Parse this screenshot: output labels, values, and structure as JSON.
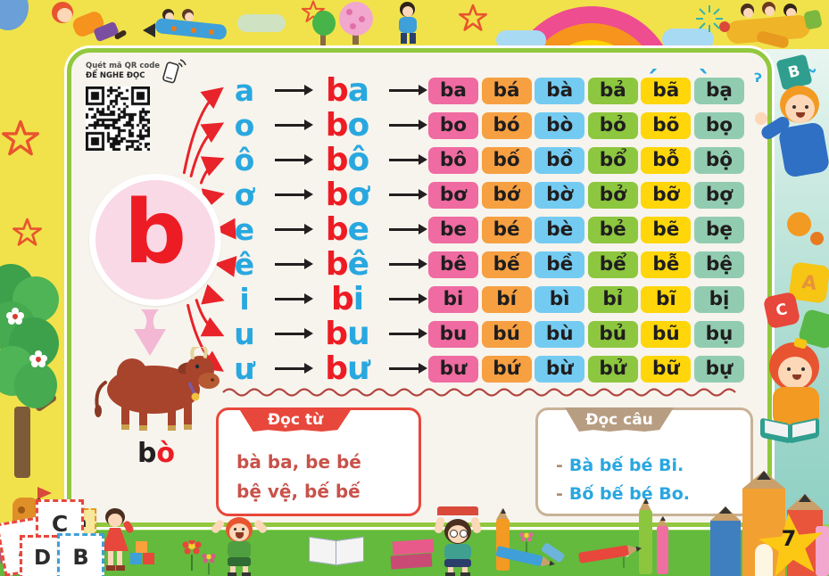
{
  "qr": {
    "line1": "Quét mã QR code",
    "line2": "ĐỂ NGHE ĐỌC"
  },
  "focus_letter": "b",
  "table": {
    "tone_marks": [
      "´",
      "`",
      "ˀ",
      "˜",
      "•"
    ],
    "cell_colors": [
      "#ef6ba1",
      "#f6a041",
      "#74cbf1",
      "#8dc63f",
      "#fed609",
      "#92ccb0"
    ],
    "rows": [
      {
        "vowel": "a",
        "syllable": "ba",
        "tones": [
          "ba",
          "bá",
          "bà",
          "bả",
          "bã",
          "bạ"
        ]
      },
      {
        "vowel": "o",
        "syllable": "bo",
        "tones": [
          "bo",
          "bó",
          "bò",
          "bỏ",
          "bõ",
          "bọ"
        ]
      },
      {
        "vowel": "ô",
        "syllable": "bô",
        "tones": [
          "bô",
          "bố",
          "bồ",
          "bổ",
          "bỗ",
          "bộ"
        ]
      },
      {
        "vowel": "ơ",
        "syllable": "bơ",
        "tones": [
          "bơ",
          "bớ",
          "bờ",
          "bở",
          "bỡ",
          "bợ"
        ]
      },
      {
        "vowel": "e",
        "syllable": "be",
        "tones": [
          "be",
          "bé",
          "bè",
          "bẻ",
          "bẽ",
          "bẹ"
        ]
      },
      {
        "vowel": "ê",
        "syllable": "bê",
        "tones": [
          "bê",
          "bế",
          "bề",
          "bể",
          "bễ",
          "bệ"
        ]
      },
      {
        "vowel": "i",
        "syllable": "bi",
        "tones": [
          "bi",
          "bí",
          "bì",
          "bỉ",
          "bĩ",
          "bị"
        ]
      },
      {
        "vowel": "u",
        "syllable": "bu",
        "tones": [
          "bu",
          "bú",
          "bù",
          "bủ",
          "bũ",
          "bụ"
        ]
      },
      {
        "vowel": "ư",
        "syllable": "bư",
        "tones": [
          "bư",
          "bứ",
          "bừ",
          "bử",
          "bữ",
          "bự"
        ]
      }
    ]
  },
  "cow": {
    "label_b": "b",
    "label_rest": "ò"
  },
  "read_words": {
    "title": "Đọc từ",
    "lines": [
      "bà ba, be bé",
      "bệ vệ, bế bế"
    ]
  },
  "read_sentences": {
    "title": "Đọc câu",
    "bullet": "-",
    "lines": [
      "Bà bế bé Bi.",
      "Bố bế bé Bo."
    ]
  },
  "page_number": "7",
  "decor": {
    "blocks": [
      "A",
      "C",
      "a",
      "D",
      "B"
    ],
    "cube_letter": "B",
    "puzzle_letters": [
      "A",
      "C"
    ]
  },
  "colors": {
    "background": "#f1e24b",
    "card_border": "#92c83e",
    "vowel_blue": "#29a8e0",
    "letter_red": "#ed1c24",
    "circle_pink": "#f9d9e6",
    "arrow_red": "#e8232a",
    "box_red": "#e8473b",
    "box_tan": "#b79d81",
    "word_red": "#c8524a",
    "sentence_blue": "#2aa7e0",
    "grass_green": "#63ba3d",
    "star_yellow": "#fdc813"
  }
}
